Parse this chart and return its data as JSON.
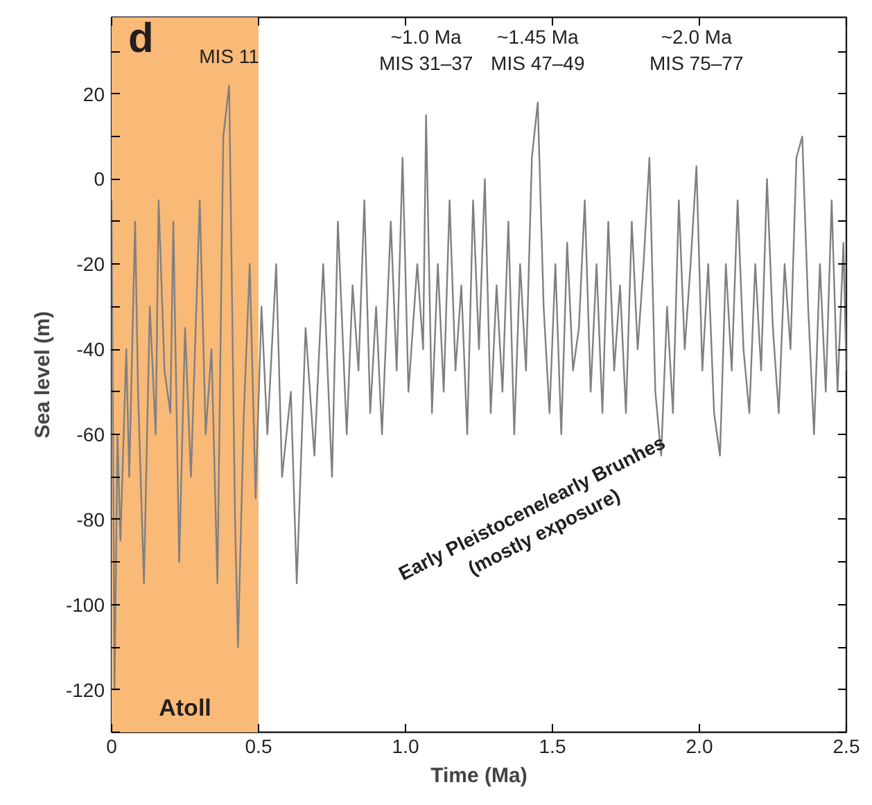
{
  "chart_data": {
    "type": "line",
    "xlabel": "Time (Ma)",
    "ylabel": "Sea level (m)",
    "xlim": [
      0,
      2.5
    ],
    "ylim": [
      -130,
      38
    ],
    "xticks": [
      0,
      0.5,
      {
        "value": 1,
        "label": "1.0"
      },
      1.5,
      {
        "value": 2,
        "label": "2.0"
      },
      2.5
    ],
    "yticks": [
      {
        "value": -130,
        "label": null
      },
      -120,
      {
        "value": -110,
        "label": null
      },
      -100,
      {
        "value": -90,
        "label": null
      },
      -80,
      {
        "value": -70,
        "label": null
      },
      -60,
      {
        "value": -50,
        "label": null
      },
      -40,
      {
        "value": -30,
        "label": null
      },
      -20,
      {
        "value": -10,
        "label": null
      },
      0,
      {
        "value": 10,
        "label": null
      },
      20,
      {
        "value": 30,
        "label": null
      }
    ],
    "grid": false,
    "marker": "none",
    "line_style": "solid",
    "bands": [
      {
        "axis": "x",
        "from": 0,
        "to": 0.5,
        "label": "Atoll",
        "color": "#f9b977"
      }
    ],
    "annotations": [
      "d",
      "Early Pleistocene/early Brunhes\n(mostly exposure)",
      "MIS 11",
      "~1.0 Ma\nMIS 31–37",
      "~1.45 Ma\nMIS 47–49",
      "~2.0 Ma\nMIS 75–77"
    ],
    "x": [
      0.0,
      0.01,
      0.02,
      0.03,
      0.05,
      0.06,
      0.08,
      0.09,
      0.11,
      0.13,
      0.15,
      0.16,
      0.18,
      0.2,
      0.21,
      0.23,
      0.25,
      0.27,
      0.3,
      0.32,
      0.34,
      0.36,
      0.38,
      0.4,
      0.42,
      0.43,
      0.45,
      0.47,
      0.49,
      0.51,
      0.53,
      0.56,
      0.58,
      0.61,
      0.63,
      0.66,
      0.69,
      0.72,
      0.75,
      0.77,
      0.8,
      0.82,
      0.84,
      0.86,
      0.88,
      0.9,
      0.92,
      0.95,
      0.97,
      0.99,
      1.01,
      1.04,
      1.06,
      1.07,
      1.09,
      1.11,
      1.13,
      1.15,
      1.17,
      1.19,
      1.21,
      1.23,
      1.25,
      1.27,
      1.29,
      1.31,
      1.33,
      1.35,
      1.37,
      1.39,
      1.41,
      1.43,
      1.45,
      1.47,
      1.49,
      1.51,
      1.53,
      1.55,
      1.57,
      1.59,
      1.61,
      1.63,
      1.65,
      1.67,
      1.69,
      1.71,
      1.73,
      1.75,
      1.77,
      1.79,
      1.81,
      1.83,
      1.85,
      1.87,
      1.89,
      1.91,
      1.93,
      1.95,
      1.97,
      1.99,
      2.01,
      2.03,
      2.05,
      2.07,
      2.09,
      2.11,
      2.13,
      2.15,
      2.17,
      2.19,
      2.21,
      2.23,
      2.25,
      2.27,
      2.29,
      2.31,
      2.33,
      2.35,
      2.37,
      2.39,
      2.41,
      2.43,
      2.45,
      2.47,
      2.49,
      2.5
    ],
    "series": [
      {
        "color": "#808080",
        "values": [
          -5,
          -120,
          -60,
          -85,
          -40,
          -70,
          -10,
          -50,
          -95,
          -30,
          -60,
          -5,
          -45,
          -55,
          -10,
          -90,
          -35,
          -70,
          -5,
          -60,
          -40,
          -95,
          10,
          22,
          -80,
          -110,
          -55,
          -20,
          -75,
          -30,
          -60,
          -20,
          -70,
          -50,
          -95,
          -35,
          -65,
          -20,
          -70,
          -10,
          -60,
          -25,
          -45,
          -5,
          -55,
          -30,
          -60,
          -10,
          -45,
          5,
          -50,
          -20,
          -40,
          15,
          -55,
          -20,
          -50,
          -5,
          -45,
          -25,
          -60,
          -5,
          -40,
          0,
          -55,
          -25,
          -50,
          -10,
          -60,
          -20,
          -45,
          5,
          18,
          -30,
          -55,
          -20,
          -60,
          -15,
          -45,
          -35,
          -5,
          -50,
          -20,
          -55,
          -10,
          -45,
          -25,
          -55,
          -10,
          -40,
          -20,
          5,
          -50,
          -65,
          -30,
          -55,
          -5,
          -40,
          -20,
          3,
          -45,
          -20,
          -55,
          -65,
          -20,
          -45,
          -5,
          -40,
          -55,
          -20,
          -45,
          0,
          -35,
          -55,
          -20,
          -40,
          5,
          10,
          -30,
          -60,
          -20,
          -50,
          -5,
          -50,
          -15,
          -45
        ]
      }
    ]
  }
}
